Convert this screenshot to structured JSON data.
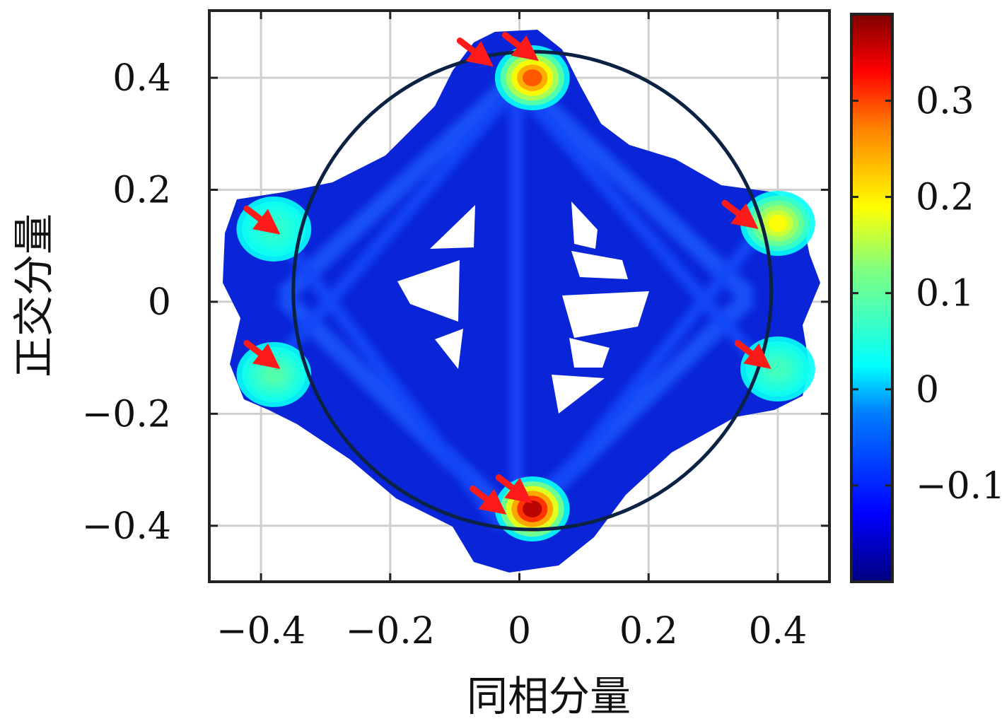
{
  "chart_data": {
    "type": "heatmap",
    "title": "",
    "xlabel": "同相分量",
    "ylabel": "正交分量",
    "xlim": [
      -0.48,
      0.48
    ],
    "ylim": [
      -0.5,
      0.52
    ],
    "x_ticks": [
      -0.4,
      -0.2,
      0,
      0.2,
      0.4
    ],
    "x_tick_labels": [
      "−0.4",
      "−0.2",
      "0",
      "0.2",
      "0.4"
    ],
    "y_ticks": [
      -0.4,
      -0.2,
      0,
      0.2,
      0.4
    ],
    "y_tick_labels": [
      "−0.4",
      "−0.2",
      "0",
      "0.2",
      "0.4"
    ],
    "grid": true,
    "colormap": "jet",
    "colorbar": {
      "range": [
        -0.2,
        0.39
      ],
      "ticks": [
        -0.1,
        0,
        0.1,
        0.2,
        0.3
      ],
      "tick_labels": [
        "−0.1",
        "0",
        "0.1",
        "0.2",
        "0.3"
      ]
    },
    "reference_circle": {
      "center": [
        0.02,
        0.02
      ],
      "radius": 0.37,
      "color": "#0b2245"
    },
    "hotspots": [
      {
        "x": 0.02,
        "y": 0.4,
        "intensity": 0.27
      },
      {
        "x": 0.02,
        "y": -0.37,
        "intensity": 0.36
      },
      {
        "x": -0.38,
        "y": 0.13,
        "intensity": 0.05
      },
      {
        "x": -0.38,
        "y": -0.13,
        "intensity": 0.07
      },
      {
        "x": 0.4,
        "y": 0.14,
        "intensity": 0.17
      },
      {
        "x": 0.4,
        "y": -0.12,
        "intensity": 0.06
      }
    ],
    "arrows": [
      {
        "x": -0.04,
        "y": 0.42
      },
      {
        "x": 0.03,
        "y": 0.43
      },
      {
        "x": -0.37,
        "y": 0.12
      },
      {
        "x": -0.37,
        "y": -0.12
      },
      {
        "x": 0.37,
        "y": 0.13
      },
      {
        "x": 0.39,
        "y": -0.12
      },
      {
        "x": -0.02,
        "y": -0.38
      },
      {
        "x": 0.02,
        "y": -0.36
      }
    ],
    "colors": {
      "arrow": "#ff1a1a",
      "frame": "#222222",
      "grid": "#cfcfcf"
    }
  }
}
